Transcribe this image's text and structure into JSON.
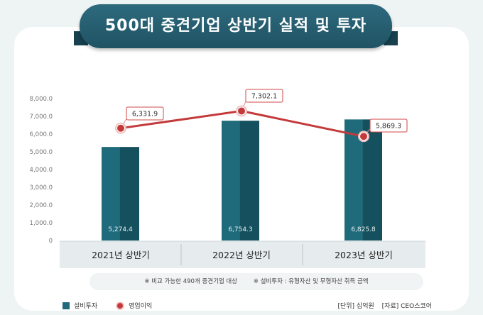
{
  "title": "500대 중견기업 상반기 실적 및 투자",
  "footnotes": [
    "※ 비교 가능한 490개 중견기업 대상",
    "※ 설비투자 : 유형자산 및 무형자산 취득 금액"
  ],
  "legend": {
    "bar_label": "설비투자",
    "line_label": "영업이익"
  },
  "source": {
    "unit": "[단위] 십억원",
    "ref": "[자료] CEO스코어"
  },
  "colors": {
    "bar": "#1f6b7c",
    "bar_dark": "#15505e",
    "line": "#c43a3a",
    "label_border": "#d04a4a"
  },
  "chart_data": {
    "type": "bar",
    "categories": [
      "2021년 상반기",
      "2022년 상반기",
      "2023년 상반기"
    ],
    "series": [
      {
        "name": "설비투자",
        "type": "bar",
        "values": [
          5274.4,
          6754.3,
          6825.8
        ],
        "labels": [
          "5,274.4",
          "6,754.3",
          "6,825.8"
        ]
      },
      {
        "name": "영업이익",
        "type": "line",
        "values": [
          6331.9,
          7302.1,
          5869.3
        ],
        "labels": [
          "6,331.9",
          "7,302.1",
          "5,869.3"
        ]
      }
    ],
    "ylim": [
      0,
      8000
    ],
    "yticks": [
      "0",
      "1,000.0",
      "2,000.0",
      "3,000.0",
      "4,000.0",
      "5,000.0",
      "6,000.0",
      "7,000.0",
      "8,000.0"
    ],
    "grid": false,
    "legend": "bottom-left"
  }
}
